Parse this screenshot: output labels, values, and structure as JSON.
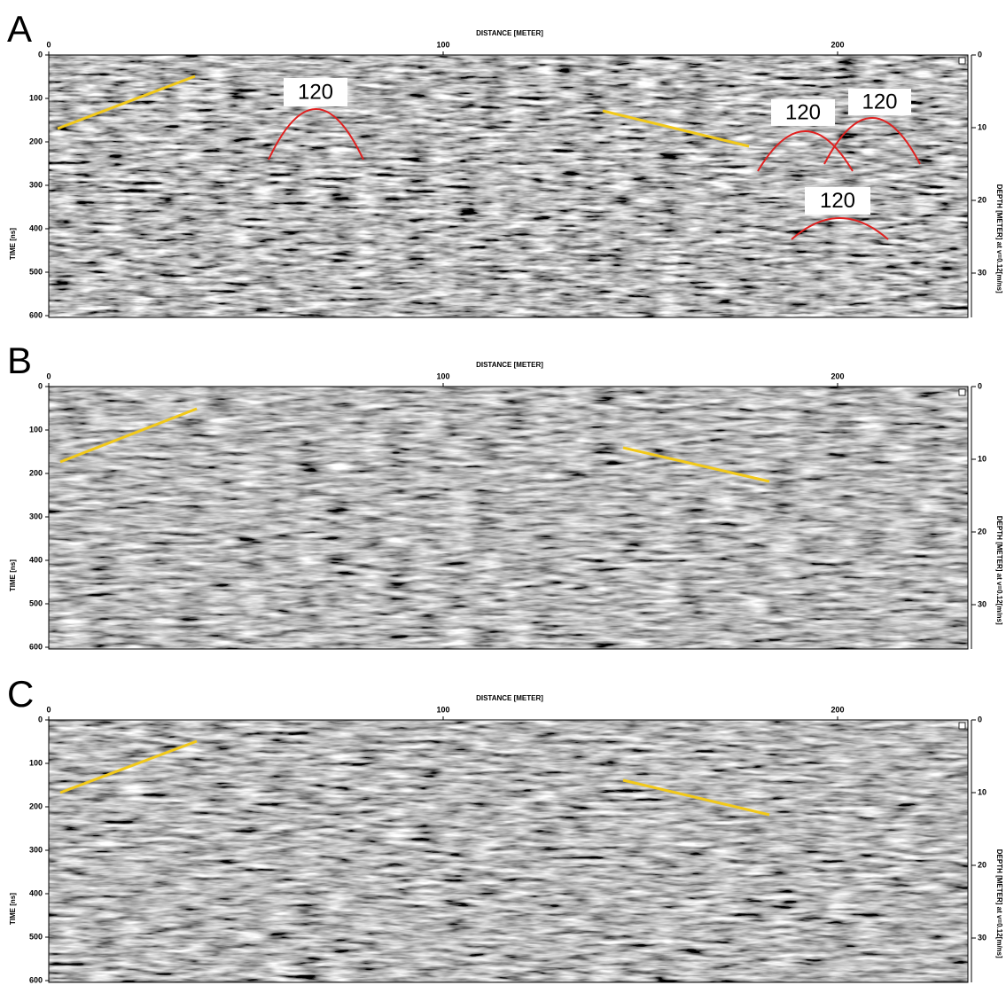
{
  "panels": [
    {
      "label": "A",
      "x_axis_title": "DISTANCE [METER]",
      "xticks": [
        0,
        100,
        200
      ],
      "yticks": [
        0,
        100,
        200,
        300,
        400,
        500,
        600
      ],
      "y_axis_title": "TIME [ns]",
      "depth_ticks": [
        0,
        10,
        20,
        30
      ],
      "y2_axis_title": "DEPTH [METER] at v=0.12[m/ns]",
      "annotations": [
        "120",
        "120",
        "120",
        "120"
      ]
    },
    {
      "label": "B",
      "x_axis_title": "DISTANCE [METER]",
      "xticks": [
        0,
        100,
        200
      ],
      "yticks": [
        0,
        100,
        200,
        300,
        400,
        500,
        600
      ],
      "y_axis_title": "TIME [ns]",
      "depth_ticks": [
        0,
        10,
        20,
        30
      ],
      "y2_axis_title": "DEPTH [METER] at v=0.12[m/ns]"
    },
    {
      "label": "C",
      "x_axis_title": "DISTANCE [METER]",
      "xticks": [
        0,
        100,
        200
      ],
      "yticks": [
        0,
        100,
        200,
        300,
        400,
        500,
        600
      ],
      "y_axis_title": "TIME [ns]",
      "depth_ticks": [
        0,
        10,
        20,
        30
      ],
      "y2_axis_title": "DEPTH [METER] at v=0.12[m/ns]"
    }
  ]
}
